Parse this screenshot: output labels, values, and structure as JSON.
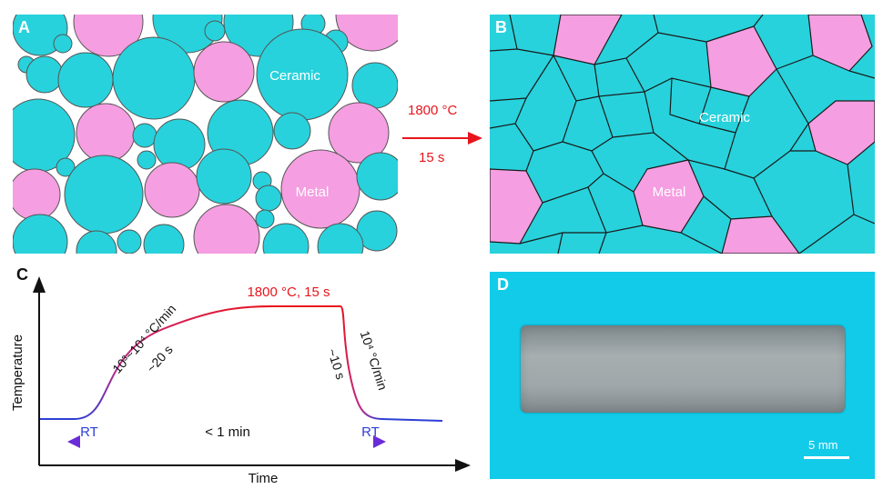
{
  "panels": {
    "a": {
      "label": "A",
      "ceramic_label": "Ceramic",
      "metal_label": "Metal"
    },
    "b": {
      "label": "B",
      "ceramic_label": "Ceramic",
      "metal_label": "Metal"
    },
    "c": {
      "label": "C",
      "ylabel": "Temperature",
      "xlabel": "Time",
      "peak_label": "1800 °C, 15 s",
      "heating_rate": "10³~10⁴ °C/min",
      "heating_time": "~20 s",
      "cooling_rate": "10⁴ °C/min",
      "cooling_time": "~10 s",
      "rt_left": "RT",
      "rt_right": "RT",
      "duration_label": "< 1 min"
    },
    "d": {
      "label": "D",
      "scale_label": "5 mm"
    }
  },
  "process": {
    "temperature": "1800 °C",
    "time": "15 s"
  },
  "colors": {
    "ceramic": "#27d2dc",
    "metal": "#f59ee1",
    "process": "#e8141c",
    "rt": "#2d3fd6"
  }
}
